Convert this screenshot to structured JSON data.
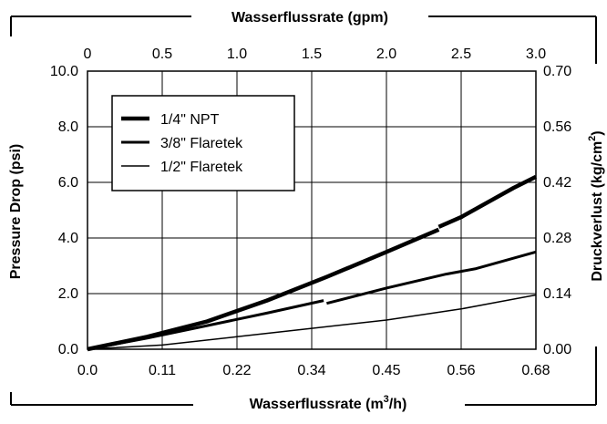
{
  "chart_data": {
    "type": "line",
    "title": "",
    "x_bottom": {
      "label_main": "Wasserflussrate (m",
      "label_sup": "3",
      "label_tail": "/h)",
      "ticks": [
        "0.0",
        "0.11",
        "0.22",
        "0.34",
        "0.45",
        "0.56",
        "0.68"
      ]
    },
    "x_top": {
      "label": "Wasserflussrate (gpm)",
      "ticks": [
        "0",
        "0.5",
        "1.0",
        "1.5",
        "2.0",
        "2.5",
        "3.0"
      ]
    },
    "y_left": {
      "label": "Pressure Drop (psi)",
      "ticks": [
        "0.0",
        "2.0",
        "4.0",
        "6.0",
        "8.0",
        "10.0"
      ]
    },
    "y_right": {
      "label_main": "Druckverlust (kg/cm",
      "label_sup": "2",
      "label_tail": ")",
      "ticks": [
        "0.00",
        "0.14",
        "0.28",
        "0.42",
        "0.56",
        "0.70"
      ]
    },
    "xlim": [
      0,
      3
    ],
    "ylim": [
      0,
      10
    ],
    "grid": true,
    "legend_position": "top-left",
    "series": [
      {
        "name": "1/4\" NPT",
        "stroke": "thick",
        "segments": [
          [
            [
              0,
              0
            ],
            [
              0.4,
              0.45
            ],
            [
              0.8,
              1.0
            ],
            [
              1.2,
              1.75
            ],
            [
              1.6,
              2.6
            ],
            [
              2.0,
              3.5
            ],
            [
              2.35,
              4.3
            ]
          ],
          [
            [
              2.35,
              4.4
            ],
            [
              2.5,
              4.75
            ],
            [
              2.7,
              5.35
            ],
            [
              2.85,
              5.8
            ],
            [
              3.0,
              6.2
            ]
          ]
        ]
      },
      {
        "name": "3/8\" Flaretek",
        "stroke": "medium",
        "segments": [
          [
            [
              0,
              0
            ],
            [
              0.4,
              0.4
            ],
            [
              0.8,
              0.85
            ],
            [
              1.2,
              1.3
            ],
            [
              1.58,
              1.75
            ]
          ],
          [
            [
              1.6,
              1.65
            ],
            [
              2.0,
              2.2
            ],
            [
              2.4,
              2.7
            ],
            [
              2.6,
              2.9
            ],
            [
              2.8,
              3.2
            ],
            [
              3.0,
              3.5
            ]
          ]
        ]
      },
      {
        "name": "1/2\" Flaretek",
        "stroke": "thin",
        "segments": [
          [
            [
              0,
              0
            ],
            [
              0.5,
              0.15
            ],
            [
              1.0,
              0.45
            ],
            [
              1.5,
              0.75
            ],
            [
              2.0,
              1.05
            ],
            [
              2.5,
              1.45
            ],
            [
              2.75,
              1.7
            ],
            [
              3.0,
              1.95
            ]
          ]
        ]
      }
    ]
  },
  "colors": {
    "line": "#000000",
    "background": "#ffffff"
  }
}
